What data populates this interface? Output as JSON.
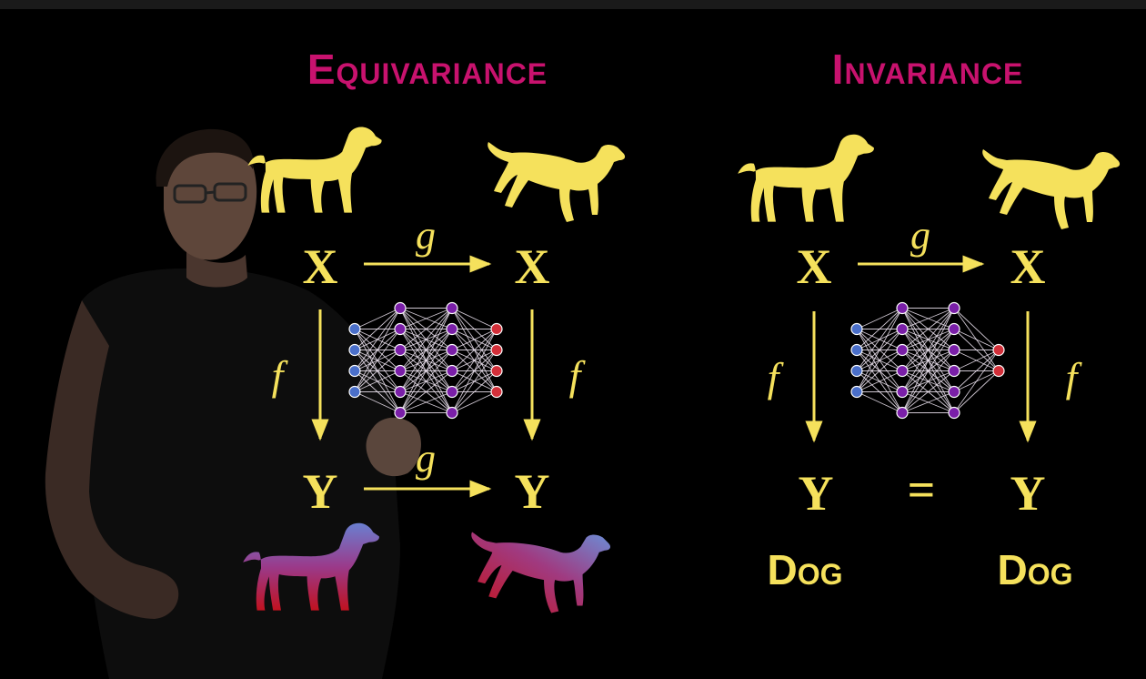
{
  "equivariance": {
    "title": "Equivariance",
    "x_left": "X",
    "x_right": "X",
    "y_left": "Y",
    "y_right": "Y",
    "g_top": "g",
    "g_bottom": "g",
    "f_left": "f",
    "f_right": "f"
  },
  "invariance": {
    "title": "Invariance",
    "x_left": "X",
    "x_right": "X",
    "y_left": "Y",
    "y_right": "Y",
    "equals": "=",
    "g_top": "g",
    "f_left": "f",
    "f_right": "f",
    "label_left": "Dog",
    "label_right": "Dog"
  },
  "colors": {
    "background": "#000000",
    "title": "#c8126e",
    "yellow": "#f5e15c",
    "node_input": "#4a6fc9",
    "node_hidden": "#7a1fa8",
    "node_output": "#d2303a",
    "dog_gradient_top": "#6a7fd0",
    "dog_gradient_bottom": "#c0121f"
  },
  "icons": [
    "dog-silhouette",
    "neural-network",
    "arrow-right",
    "arrow-down",
    "presenter"
  ]
}
